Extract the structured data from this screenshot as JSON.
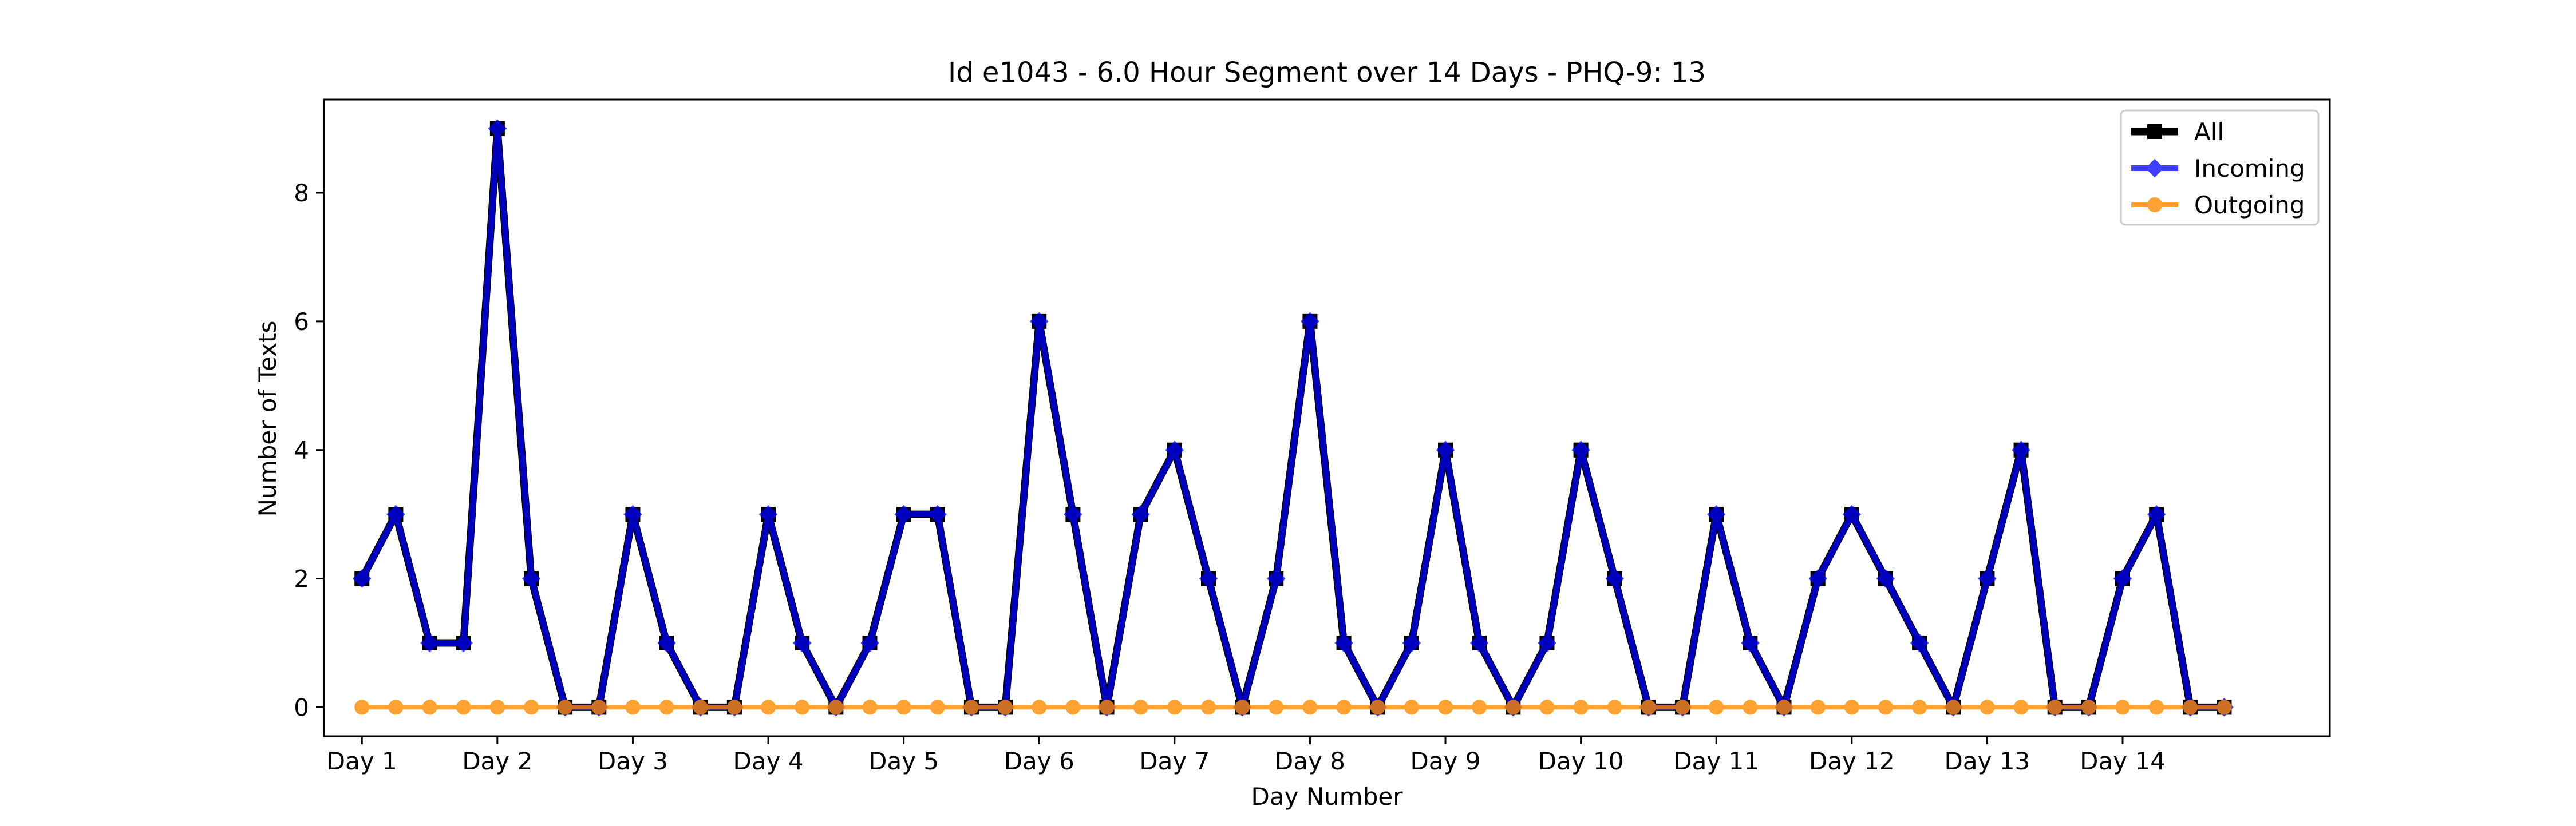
{
  "chart_data": {
    "type": "line",
    "title": "Id e1043 - 6.0 Hour Segment over 14 Days - PHQ-9: 13",
    "xlabel": "Day Number",
    "ylabel": "Number of Texts",
    "x_tick_labels": [
      "Day 1",
      "Day 2",
      "Day 3",
      "Day 4",
      "Day 5",
      "Day 6",
      "Day 7",
      "Day 8",
      "Day 9",
      "Day 10",
      "Day 11",
      "Day 12",
      "Day 13",
      "Day 14"
    ],
    "y_ticks": [
      0,
      2,
      4,
      6,
      8
    ],
    "xlim": [
      -1.12,
      58.12
    ],
    "ylim": [
      -0.45,
      9.45
    ],
    "x": [
      0,
      1,
      2,
      3,
      4,
      5,
      6,
      7,
      8,
      9,
      10,
      11,
      12,
      13,
      14,
      15,
      16,
      17,
      18,
      19,
      20,
      21,
      22,
      23,
      24,
      25,
      26,
      27,
      28,
      29,
      30,
      31,
      32,
      33,
      34,
      35,
      36,
      37,
      38,
      39,
      40,
      41,
      42,
      43,
      44,
      45,
      46,
      47,
      48,
      49,
      50,
      51,
      52,
      53,
      54,
      55
    ],
    "grid": false,
    "legend_position": "top-right",
    "series": [
      {
        "name": "All",
        "color": "#000000",
        "marker": "square",
        "values": [
          2,
          3,
          1,
          1,
          9,
          2,
          0,
          0,
          3,
          1,
          0,
          0,
          3,
          1,
          0,
          1,
          3,
          3,
          0,
          0,
          6,
          3,
          0,
          3,
          4,
          2,
          0,
          2,
          6,
          1,
          0,
          1,
          4,
          1,
          0,
          1,
          4,
          2,
          0,
          0,
          3,
          1,
          0,
          2,
          3,
          2,
          1,
          0,
          2,
          4,
          0,
          0,
          2,
          3,
          0,
          0
        ]
      },
      {
        "name": "Incoming",
        "color": "#0000ff",
        "marker": "diamond",
        "values": [
          2,
          3,
          1,
          1,
          9,
          2,
          0,
          0,
          3,
          1,
          0,
          0,
          3,
          1,
          0,
          1,
          3,
          3,
          0,
          0,
          6,
          3,
          0,
          3,
          4,
          2,
          0,
          2,
          6,
          1,
          0,
          1,
          4,
          1,
          0,
          1,
          4,
          2,
          0,
          0,
          3,
          1,
          0,
          2,
          3,
          2,
          1,
          0,
          2,
          4,
          0,
          0,
          2,
          3,
          0,
          0
        ]
      },
      {
        "name": "Outgoing",
        "color": "#ff8c00",
        "marker": "circle",
        "values": [
          0,
          0,
          0,
          0,
          0,
          0,
          0,
          0,
          0,
          0,
          0,
          0,
          0,
          0,
          0,
          0,
          0,
          0,
          0,
          0,
          0,
          0,
          0,
          0,
          0,
          0,
          0,
          0,
          0,
          0,
          0,
          0,
          0,
          0,
          0,
          0,
          0,
          0,
          0,
          0,
          0,
          0,
          0,
          0,
          0,
          0,
          0,
          0,
          0,
          0,
          0,
          0,
          0,
          0,
          0,
          0
        ]
      }
    ]
  }
}
